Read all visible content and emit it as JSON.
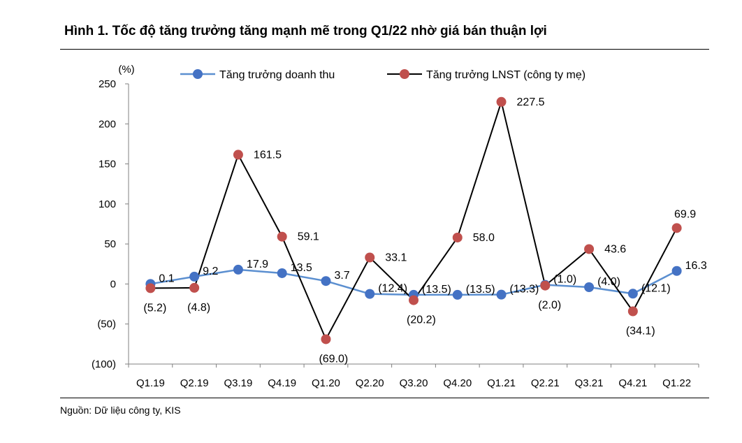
{
  "title": "Hình 1. Tốc độ tăng trưởng tăng mạnh mẽ trong Q1/22 nhờ giá bán thuận lợi",
  "source": "Nguồn: Dữ liệu công ty, KIS",
  "chart_data": {
    "type": "line",
    "ylabel": "(%)",
    "ylim": [
      -100,
      250
    ],
    "yticks": [
      250,
      200,
      150,
      100,
      50,
      0,
      -50,
      -100
    ],
    "ytick_labels": [
      "250",
      "200",
      "150",
      "100",
      "50",
      "0",
      "(50)",
      "(100)"
    ],
    "categories": [
      "Q1.19",
      "Q2.19",
      "Q3.19",
      "Q4.19",
      "Q1.20",
      "Q2.20",
      "Q3.20",
      "Q4.20",
      "Q1.21",
      "Q2.21",
      "Q3.21",
      "Q4.21",
      "Q1.22"
    ],
    "grid": false,
    "legend": "top",
    "series": [
      {
        "name": "Tăng trưởng doanh thu",
        "line_color": "#5b8fd0",
        "marker_color": "#4472c4",
        "values": [
          0.1,
          9.2,
          17.9,
          13.5,
          3.7,
          -12.4,
          -13.5,
          -13.5,
          -13.3,
          -1.0,
          -4.0,
          -12.1,
          16.3
        ],
        "labels": [
          "0.1",
          "9.2",
          "17.9",
          "13.5",
          "3.7",
          "(12.4)",
          "(13.5)",
          "(13.5)",
          "(13.3)",
          "(1.0)",
          "(4.0)",
          "(12.1)",
          "16.3"
        ]
      },
      {
        "name": "Tăng trưởng LNST (công ty mẹ)",
        "line_color": "#000000",
        "marker_color": "#c0504d",
        "values": [
          -5.2,
          -4.8,
          161.5,
          59.1,
          -69.0,
          33.1,
          -20.2,
          58.0,
          227.5,
          -2.0,
          43.6,
          -34.1,
          69.9
        ],
        "labels": [
          "(5.2)",
          "(4.8)",
          "161.5",
          "59.1",
          "(69.0)",
          "33.1",
          "(20.2)",
          "58.0",
          "227.5",
          "(2.0)",
          "43.6",
          "(34.1)",
          "69.9"
        ]
      }
    ]
  }
}
